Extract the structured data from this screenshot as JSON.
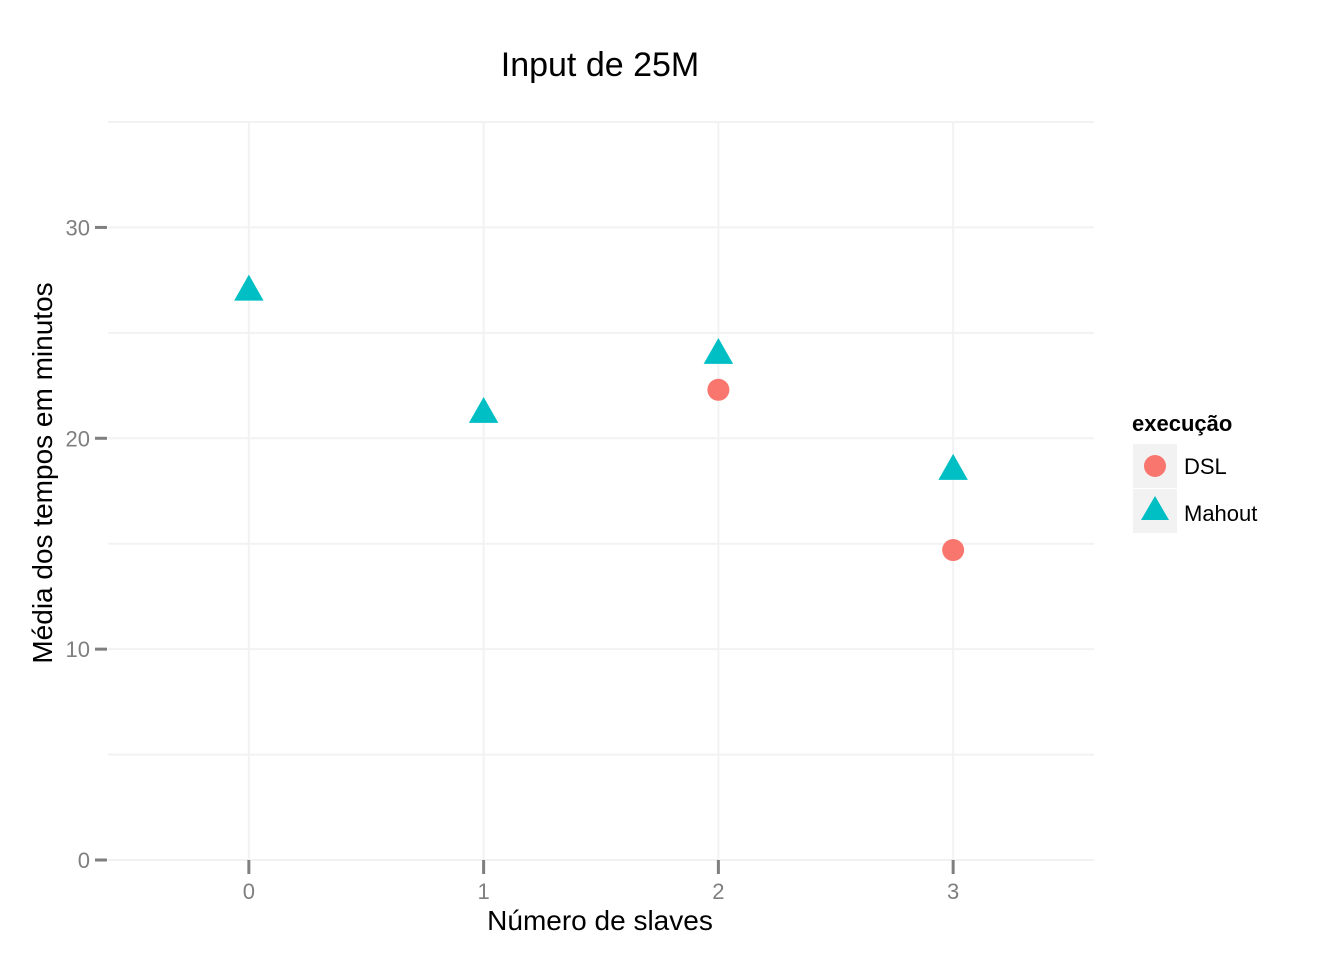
{
  "chart_data": {
    "type": "scatter",
    "title": "Input de 25M",
    "xlabel": "Número de slaves",
    "ylabel": "Média dos tempos em minutos",
    "x": [
      0,
      1,
      2,
      3
    ],
    "xlim": [
      -0.6,
      3.6
    ],
    "ylim": [
      0,
      35
    ],
    "x_ticks": [
      "0",
      "1",
      "2",
      "3"
    ],
    "y_ticks": [
      "0",
      "10",
      "20",
      "30"
    ],
    "grid": true,
    "legend": {
      "title": "execução",
      "placement": "right"
    },
    "series": [
      {
        "name": "DSL",
        "shape": "circle",
        "color": "#F8766D",
        "points": [
          {
            "x": 2,
            "y": 22.3
          },
          {
            "x": 3,
            "y": 14.7
          }
        ]
      },
      {
        "name": "Mahout",
        "shape": "triangle",
        "color": "#00BFC4",
        "points": [
          {
            "x": 0,
            "y": 27.0
          },
          {
            "x": 1,
            "y": 21.2
          },
          {
            "x": 2,
            "y": 24.0
          },
          {
            "x": 3,
            "y": 18.5
          }
        ]
      }
    ]
  }
}
